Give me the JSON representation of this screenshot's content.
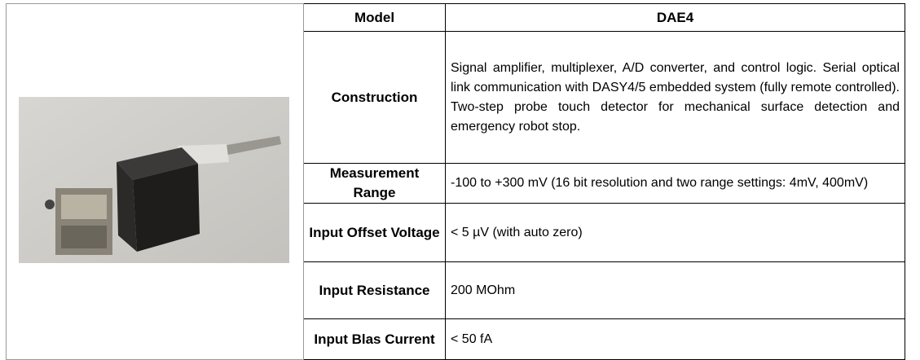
{
  "table": {
    "header": [
      "Model",
      "DAE4"
    ],
    "rows": [
      [
        "Construction",
        "Signal amplifier, multiplexer, A/D converter, and control logic. Serial optical link communication with DASY4/5 embedded system (fully remote controlled). Two-step probe touch detector for mechanical surface detection and emergency robot stop."
      ],
      [
        "Measurement Range",
        "-100 to +300 mV (16 bit resolution and two range settings: 4mV, 400mV)"
      ],
      [
        "Input Offset Voltage",
        "< 5 µV (with auto zero)"
      ],
      [
        "Input Resistance",
        "200 MOhm"
      ],
      [
        "Input Blas Current",
        "< 50 fA"
      ]
    ]
  }
}
